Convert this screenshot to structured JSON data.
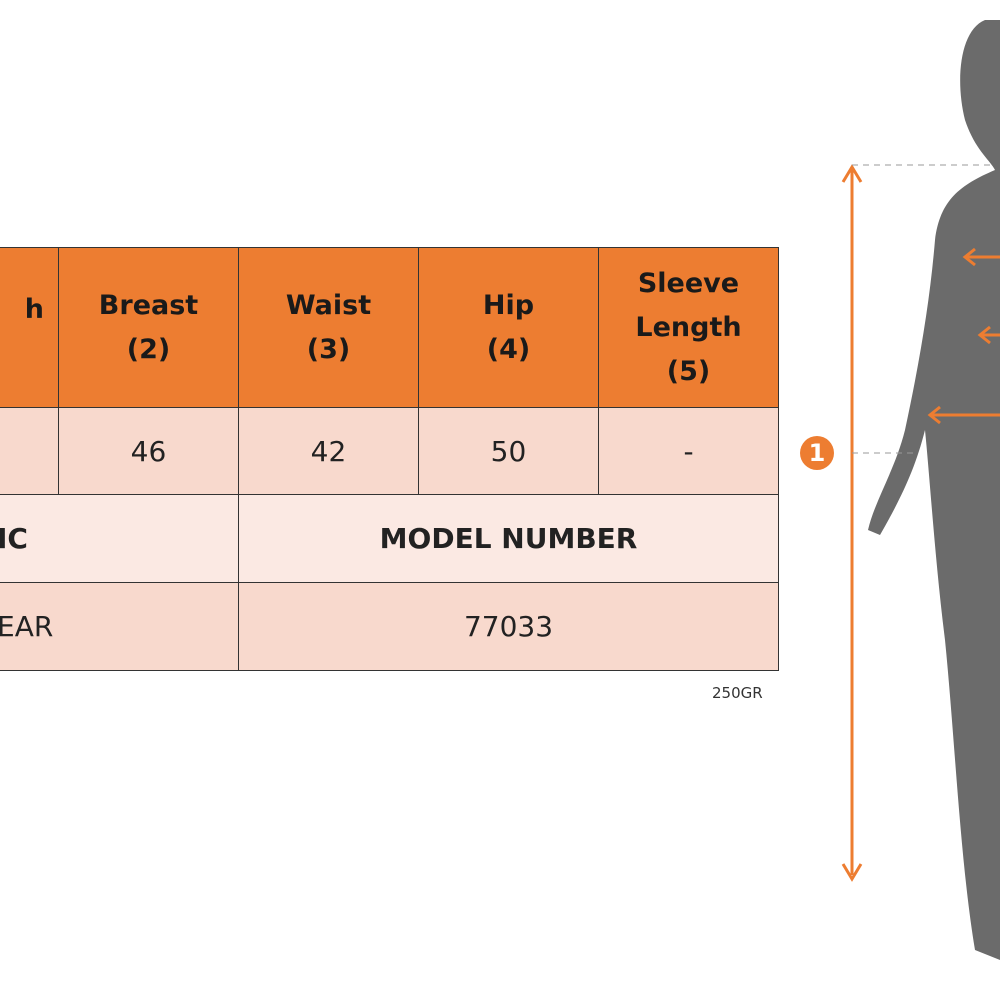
{
  "table": {
    "headers": [
      "h",
      "Breast\n(2)",
      "Waist\n(3)",
      "Hip\n(4)",
      "Sleeve\nLength\n(5)"
    ],
    "values": [
      "",
      "46",
      "42",
      "50",
      "-"
    ],
    "info_labels": [
      "IC",
      "MODEL NUMBER"
    ],
    "info_values": [
      "EAR",
      "77033"
    ]
  },
  "weight": "250GR",
  "figure": {
    "marker_1": "1",
    "accent_color": "#ed7d31",
    "header_color": "#ed7d31",
    "silhouette_color": "#6b6b6b"
  }
}
